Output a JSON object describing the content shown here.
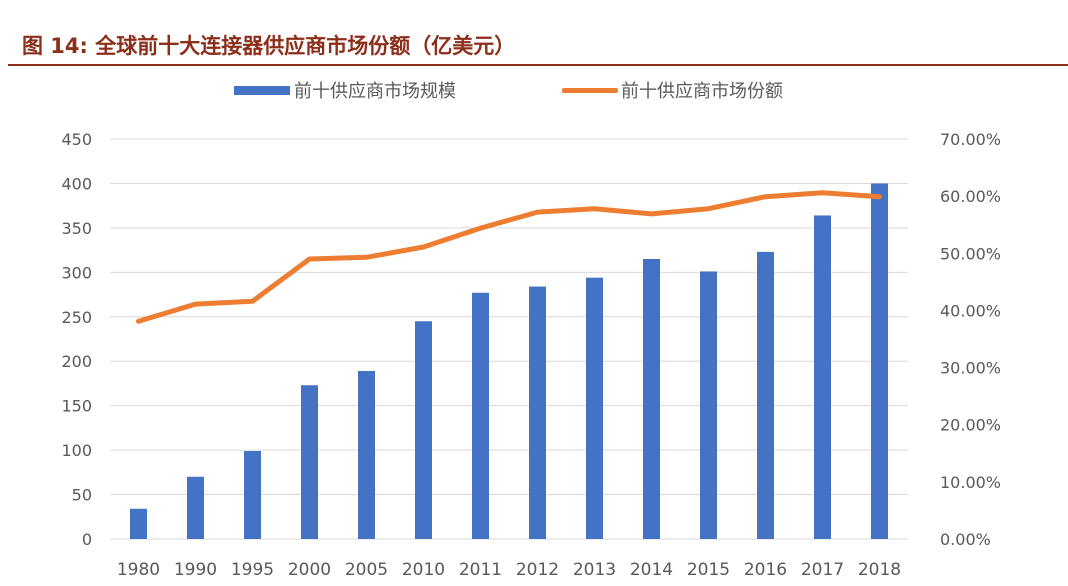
{
  "title": "图 14:  全球前十大连接器供应商市场份额（亿美元）",
  "colors": {
    "title": "#8b2e1a",
    "bar": "#4472c4",
    "line": "#ed7d31",
    "grid": "#d9d9d9"
  },
  "chart_data": {
    "type": "bar+line",
    "title": "图 14:  全球前十大连接器供应商市场份额（亿美元）",
    "categories": [
      "1980",
      "1990",
      "1995",
      "2000",
      "2005",
      "2010",
      "2011",
      "2012",
      "2013",
      "2014",
      "2015",
      "2016",
      "2017",
      "2018"
    ],
    "series": [
      {
        "name": "前十供应商市场规模",
        "type": "bar",
        "axis": "left",
        "values": [
          34,
          70,
          99,
          173,
          189,
          245,
          277,
          284,
          294,
          315,
          301,
          323,
          364,
          400
        ]
      },
      {
        "name": "前十供应商市场份额",
        "type": "line",
        "axis": "right",
        "values": [
          38.1,
          41.1,
          41.6,
          49.0,
          49.3,
          51.1,
          54.4,
          57.2,
          57.8,
          56.9,
          57.8,
          59.9,
          60.6,
          59.9
        ]
      }
    ],
    "left_axis": {
      "range": [
        0,
        450
      ],
      "ticks": [
        "0",
        "50",
        "100",
        "150",
        "200",
        "250",
        "300",
        "350",
        "400",
        "450"
      ]
    },
    "right_axis": {
      "range": [
        0,
        70
      ],
      "ticks": [
        "0.00%",
        "10.00%",
        "20.00%",
        "30.00%",
        "40.00%",
        "50.00%",
        "60.00%",
        "70.00%"
      ]
    },
    "grid": true,
    "legend": "top"
  }
}
